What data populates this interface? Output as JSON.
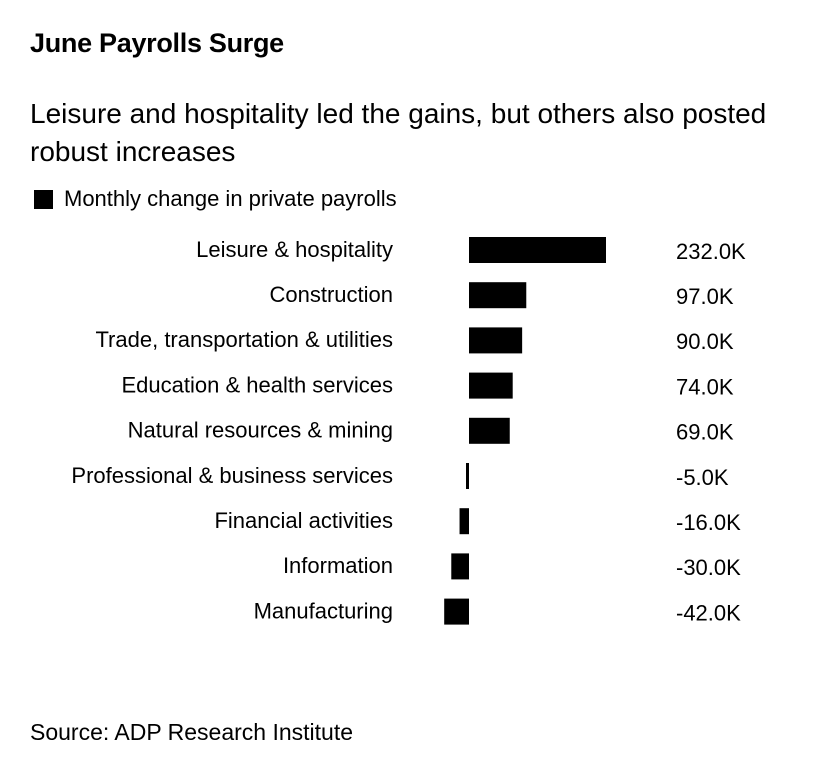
{
  "title": "June Payrolls Surge",
  "subtitle": "Leisure and hospitality led the gains, but others also posted robust increases",
  "legend": {
    "label": "Monthly change in private payrolls",
    "color": "#000000"
  },
  "source": "Source: ADP Research Institute",
  "chart_data": {
    "type": "bar",
    "orientation": "horizontal",
    "categories": [
      "Leisure & hospitality",
      "Construction",
      "Trade, transportation & utilities",
      "Education & health services",
      "Natural resources & mining",
      "Professional & business services",
      "Financial activities",
      "Information",
      "Manufacturing"
    ],
    "series": [
      {
        "name": "Monthly change in private payrolls",
        "values": [
          232.0,
          97.0,
          90.0,
          74.0,
          69.0,
          -5.0,
          -16.0,
          -30.0,
          -42.0
        ],
        "color": "#000000"
      }
    ],
    "value_labels": [
      "232.0K",
      "97.0K",
      "90.0K",
      "74.0K",
      "69.0K",
      "-5.0K",
      "-16.0K",
      "-30.0K",
      "-42.0K"
    ],
    "unit": "K",
    "xlim": [
      -42,
      232
    ],
    "grid": false,
    "legend_position": "top-left"
  }
}
